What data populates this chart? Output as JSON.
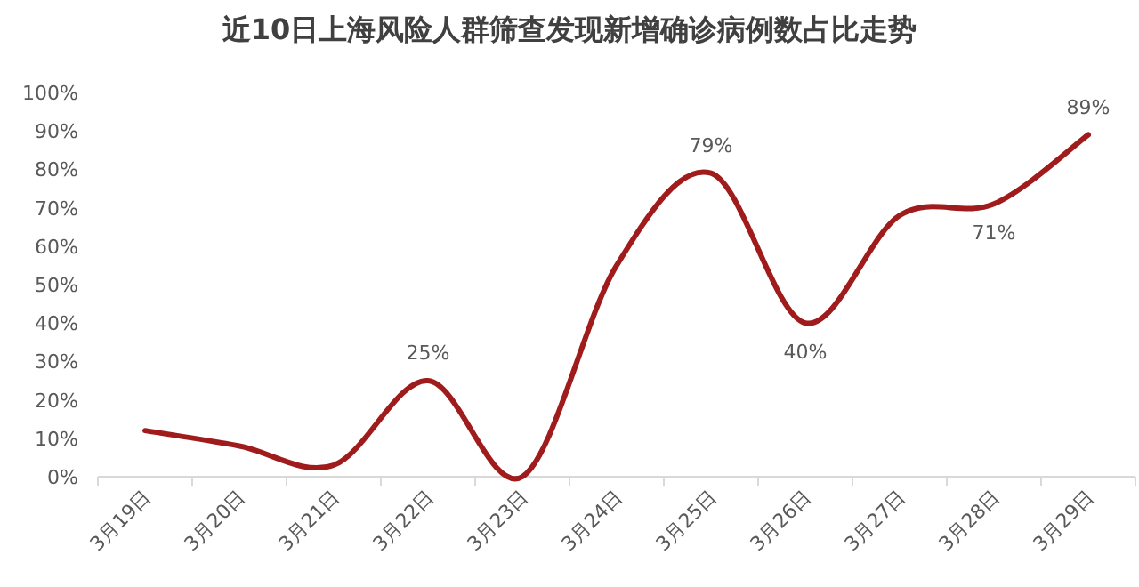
{
  "chart_data": {
    "type": "line",
    "title": "近10日上海风险人群筛查发现新增确诊病例数占比走势",
    "categories": [
      "3月19日",
      "3月20日",
      "3月21日",
      "3月22日",
      "3月23日",
      "3月24日",
      "3月25日",
      "3月26日",
      "3月27日",
      "3月28日",
      "3月29日"
    ],
    "series": [
      {
        "color": "#a01c1c",
        "values": [
          12,
          8,
          3,
          25,
          0,
          55,
          79,
          40,
          68,
          71,
          89
        ],
        "value_labels": [
          null,
          null,
          null,
          "25%",
          null,
          null,
          "79%",
          "40%",
          null,
          "71%",
          "89%"
        ]
      }
    ],
    "ylim": [
      0,
      100
    ],
    "yticks": [
      {
        "value": 0,
        "label": "0%"
      },
      {
        "value": 10,
        "label": "10%"
      },
      {
        "value": 20,
        "label": "20%"
      },
      {
        "value": 30,
        "label": "30%"
      },
      {
        "value": 40,
        "label": "40%"
      },
      {
        "value": 50,
        "label": "50%"
      },
      {
        "value": 60,
        "label": "60%"
      },
      {
        "value": 70,
        "label": "70%"
      },
      {
        "value": 80,
        "label": "80%"
      },
      {
        "value": 90,
        "label": "90%"
      },
      {
        "value": 100,
        "label": "100%"
      }
    ],
    "grid": false,
    "marker": "none",
    "line_style": "solid"
  }
}
